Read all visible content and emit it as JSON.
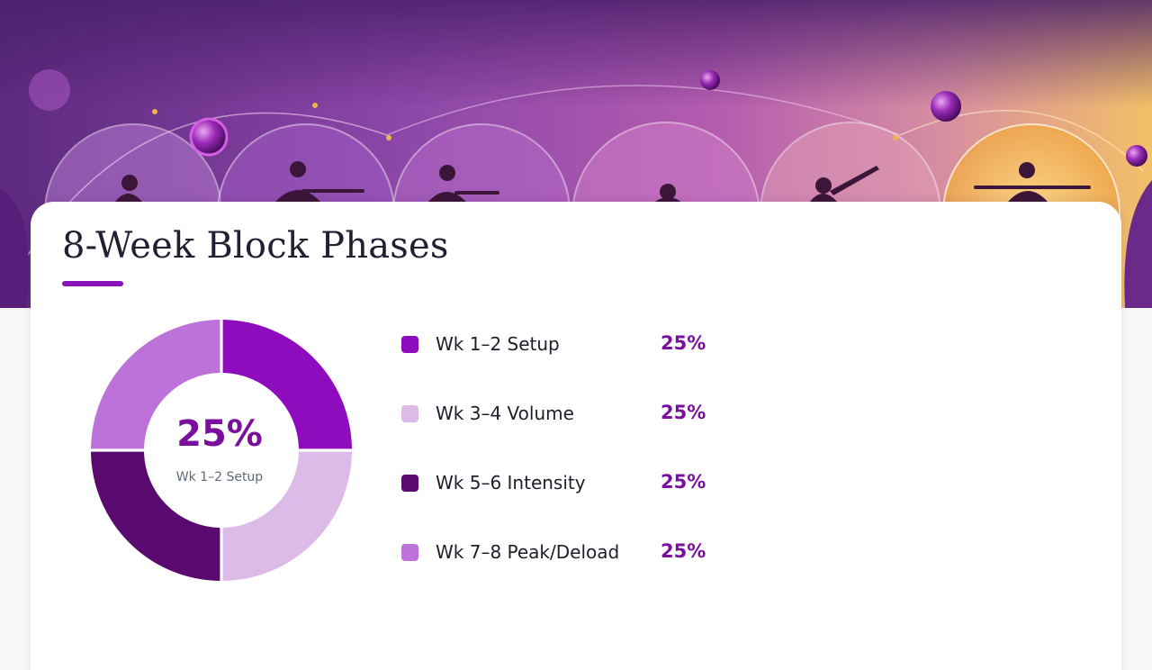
{
  "colors": {
    "accent": "#8a12b8",
    "value_text": "#7a0f9e"
  },
  "chart_data": {
    "type": "pie",
    "variant": "donut",
    "title": "8-Week Block Phases",
    "center": {
      "value": "25%",
      "label": "Wk 1–2 Setup"
    },
    "slices": [
      {
        "label": "Wk 1–2 Setup",
        "value": 25,
        "display": "25%",
        "color": "#8e0cbd"
      },
      {
        "label": "Wk 3–4 Volume",
        "value": 25,
        "display": "25%",
        "color": "#ddbbe9"
      },
      {
        "label": "Wk 5–6 Intensity",
        "value": 25,
        "display": "25%",
        "color": "#5a0a6e"
      },
      {
        "label": "Wk 7–8 Peak/Deload",
        "value": 25,
        "display": "25%",
        "color": "#bd72d9"
      }
    ]
  }
}
